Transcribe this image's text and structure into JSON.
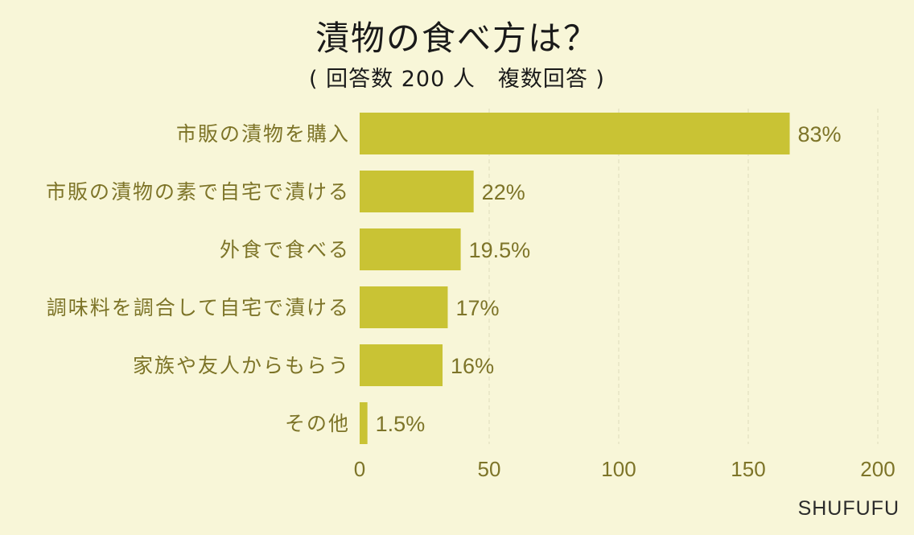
{
  "header": {
    "title": "漬物の食べ方は？",
    "subtitle": "( 回答数 200 人　複数回答 )"
  },
  "credit": "SHUFUFU",
  "colors": {
    "background": "#f8f6d8",
    "bar": "#c9c334",
    "label_text": "#7d7428",
    "grid": "#dedcbc"
  },
  "chart_data": {
    "type": "bar",
    "orientation": "horizontal",
    "categories": [
      "市販の漬物を購入",
      "市販の漬物の素で自宅で漬ける",
      "外食で食べる",
      "調味料を調合して自宅で漬ける",
      "家族や友人からもらう",
      "その他"
    ],
    "values": [
      166,
      44,
      39,
      34,
      32,
      3
    ],
    "data_labels": [
      "83%",
      "22%",
      "19.5%",
      "17%",
      "16%",
      "1.5%"
    ],
    "xlim": [
      0,
      200
    ],
    "xticks": [
      0,
      50,
      100,
      150,
      200
    ],
    "grid": true,
    "legend": "none"
  }
}
